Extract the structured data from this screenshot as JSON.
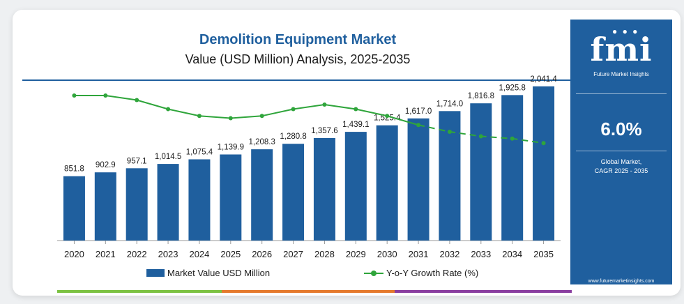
{
  "header": {
    "title": "Demolition Equipment Market",
    "subtitle": "Value (USD Million) Analysis, 2025-2035"
  },
  "legend": {
    "bar_label": "Market Value USD Million",
    "line_label": "Y-o-Y Growth Rate (%)"
  },
  "sidebar": {
    "logo_text": "fmi",
    "logo_subtext": "Future Market Insights",
    "cagr_value": "6.0%",
    "cagr_label_line1": "Global Market,",
    "cagr_label_line2": "CAGR 2025 - 2035",
    "url": "www.futuremarketinsights.com"
  },
  "colors": {
    "bar": "#1f5f9e",
    "line": "#2fa53b",
    "accent_green": "#7cc242",
    "accent_orange": "#e57a2d",
    "accent_purple": "#8a3ea0"
  },
  "chart_data": {
    "type": "bar",
    "title": "Demolition Equipment Market",
    "subtitle": "Value (USD Million) Analysis, 2025-2035",
    "categories": [
      "2020",
      "2021",
      "2022",
      "2023",
      "2024",
      "2025",
      "2026",
      "2027",
      "2028",
      "2029",
      "2030",
      "2031",
      "2032",
      "2033",
      "2034",
      "2035"
    ],
    "series": [
      {
        "name": "Market Value USD Million",
        "type": "bar",
        "values": [
          851.8,
          902.9,
          957.1,
          1014.5,
          1075.4,
          1139.9,
          1208.3,
          1280.8,
          1357.6,
          1439.1,
          1525.4,
          1617.0,
          1714.0,
          1816.8,
          1925.8,
          2041.4
        ],
        "labels": [
          "851.8",
          "902.9",
          "957.1",
          "1,014.5",
          "1,075.4",
          "1,139.9",
          "1,208.3",
          "1,280.8",
          "1,357.6",
          "1,439.1",
          "1,525.4",
          "1,617.0",
          "1,714.0",
          "1,816.8",
          "1,925.8",
          "2,041.4"
        ]
      },
      {
        "name": "Y-o-Y Growth Rate (%)",
        "type": "line",
        "values": [
          6.4,
          6.4,
          6.2,
          5.8,
          5.5,
          5.4,
          5.5,
          5.8,
          6.0,
          5.8,
          5.5,
          5.1,
          4.8,
          4.6,
          4.5,
          4.3
        ]
      }
    ],
    "ylim": [
      0,
      2400
    ],
    "ylim_growth": [
      0,
      8
    ],
    "grid": false,
    "legend_position": "bottom"
  }
}
